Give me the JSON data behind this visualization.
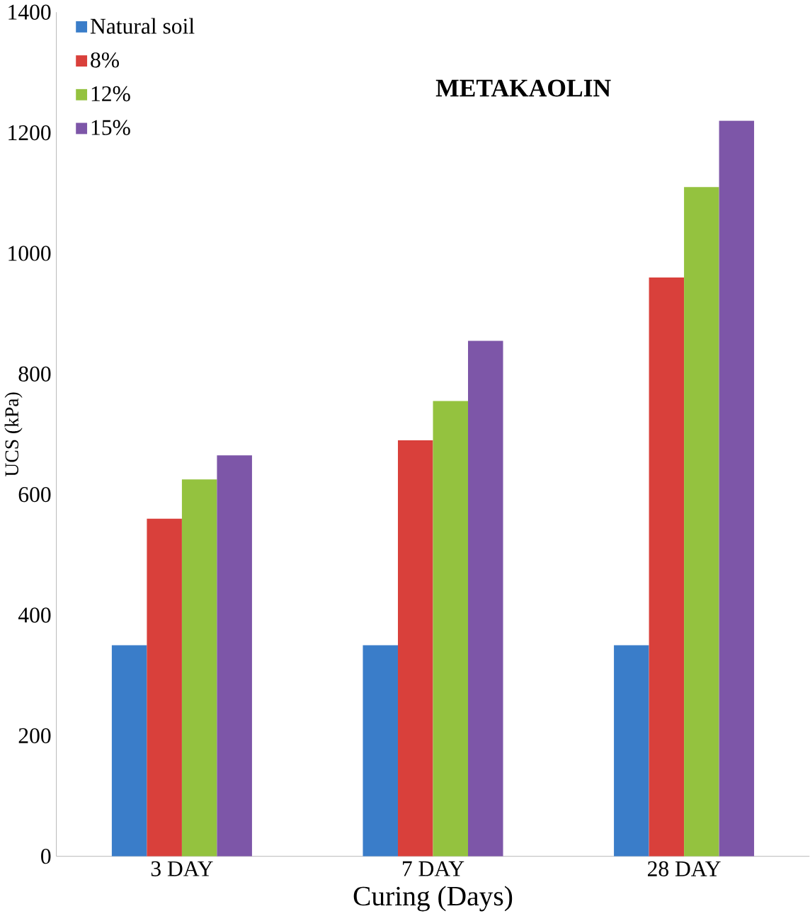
{
  "chart_data": {
    "type": "bar",
    "title": "METAKAOLIN",
    "xlabel": "Curing (Days)",
    "ylabel": "UCS  (kPa)",
    "categories": [
      "3 DAY",
      "7 DAY",
      "28 DAY"
    ],
    "series": [
      {
        "name": "Natural soil",
        "color": "#3a7dc9",
        "values": [
          350,
          350,
          350
        ]
      },
      {
        "name": "8%",
        "color": "#d9403b",
        "values": [
          560,
          690,
          960
        ]
      },
      {
        "name": "12%",
        "color": "#94c23f",
        "values": [
          625,
          755,
          1110
        ]
      },
      {
        "name": "15%",
        "color": "#7d56a8",
        "values": [
          665,
          855,
          1220
        ]
      }
    ],
    "ylim": [
      0,
      1400
    ],
    "yticks": [
      0,
      200,
      400,
      600,
      800,
      1000,
      1200,
      1400
    ],
    "grid": false,
    "legend": "top left"
  }
}
